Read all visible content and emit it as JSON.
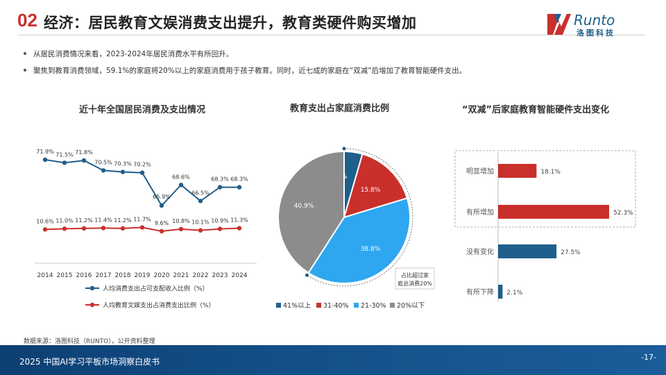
{
  "header": {
    "number": "02",
    "title": "经济：居民教育文娱消费支出提升，教育类硬件购买增加",
    "logo_text": "Runto",
    "logo_sub": "洛图科技"
  },
  "bullets": [
    "从居民消费情况来看，2023-2024年居民消费水平有所回升。",
    "聚焦到教育消费领域，59.1%的家庭将20%以上的家庭消费用于孩子教育。同时，近七成的家庭在“双减”后增加了教育智能硬件支出。"
  ],
  "chart_data": [
    {
      "type": "line",
      "title": "近十年全国居民消费及支出情况",
      "x": [
        "2014",
        "2015",
        "2016",
        "2017",
        "2018",
        "2019",
        "2020",
        "2021",
        "2022",
        "2023",
        "2024"
      ],
      "series": [
        {
          "name": "人均消费支出占可支配收入比例（%）",
          "color": "#1f5f8b",
          "values": [
            71.9,
            71.5,
            71.8,
            70.5,
            70.3,
            70.2,
            65.9,
            68.6,
            66.5,
            68.3,
            68.3
          ],
          "labels": [
            "71.9%",
            "71.5%",
            "71.8%",
            "70.5%",
            "70.3%",
            "70.2%",
            "65.9%",
            "68.6%",
            "66.5%",
            "68.3%",
            "68.3%"
          ]
        },
        {
          "name": "人均教育文娱支出占消费支出比例（%）",
          "color": "#c9302c",
          "values": [
            10.6,
            11.0,
            11.2,
            11.4,
            11.2,
            11.7,
            9.6,
            10.8,
            10.1,
            10.9,
            11.3
          ],
          "labels": [
            "10.6%",
            "11.0%",
            "11.2%",
            "11.4%",
            "11.2%",
            "11.7%",
            "9.6%",
            "10.8%",
            "10.1%",
            "10.9%",
            "11.3%"
          ]
        }
      ]
    },
    {
      "type": "pie",
      "title": "教育支出占家庭消费比例",
      "categories": [
        "41%以上",
        "31-40%",
        "21-30%",
        "20%以下"
      ],
      "values": [
        4.5,
        15.8,
        38.8,
        40.9
      ],
      "labels": [
        "4.5%",
        "15.8%",
        "38.8%",
        "40.9%"
      ],
      "colors": [
        "#1f5f8b",
        "#c9302c",
        "#2ea7f0",
        "#8c8c8c"
      ],
      "annotation": "占比超过家庭总消费20%"
    },
    {
      "type": "bar",
      "title": "“双减”后家庭教育智能硬件支出变化",
      "categories": [
        "明显增加",
        "有所增加",
        "没有变化",
        "有所下降"
      ],
      "values": [
        18.1,
        52.3,
        27.5,
        2.1
      ],
      "labels": [
        "18.1%",
        "52.3%",
        "27.5%",
        "2.1%"
      ],
      "colors": [
        "#c9302c",
        "#c9302c",
        "#1f5f8b",
        "#1f5f8b"
      ]
    }
  ],
  "source": "数据来源：洛图科技（RUNTO），公开资料整理",
  "footer": {
    "text": "2025 中国AI学习平板市场洞察白皮书",
    "page": "-17-"
  }
}
